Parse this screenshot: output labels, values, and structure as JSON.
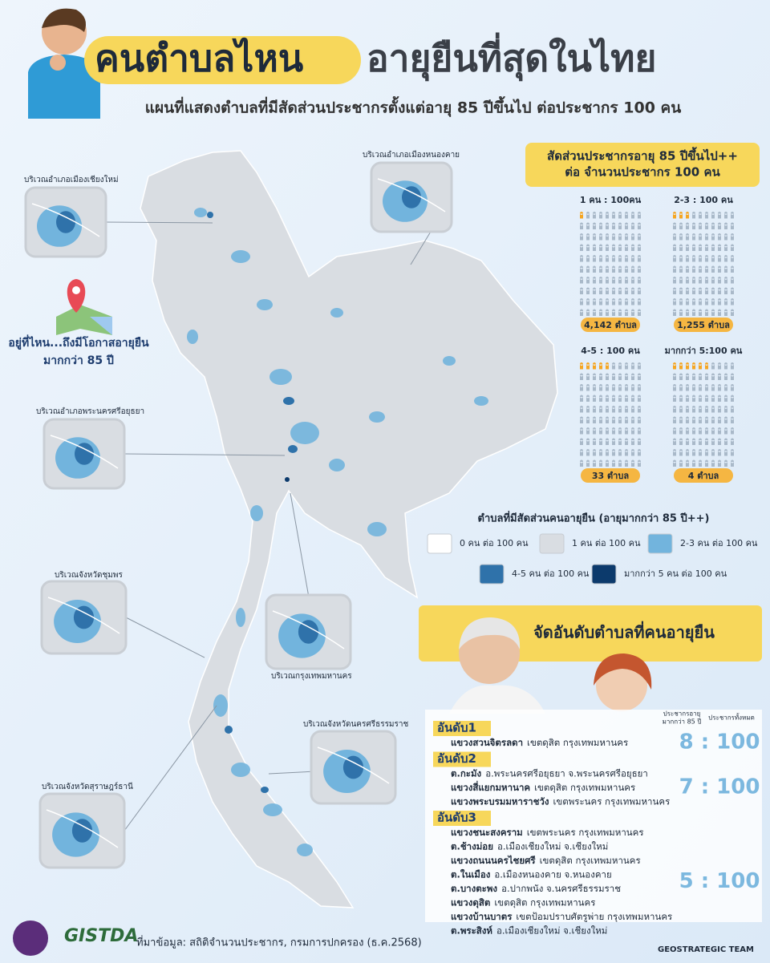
{
  "header": {
    "title_highlight": "คนตำบลไหน",
    "title_rest": "อายุยืนที่สุดในไทย",
    "subtitle": "แผนที่แสดงตำบลที่มีสัดส่วนประชากรตั้งแต่อายุ 85 ปีขึ้นไป ต่อประชากร 100 คน"
  },
  "callout": {
    "line1": "อยู่ที่ไหน...ถึงมีโอกาสอายุยืน",
    "line2": "มากกว่า 85 ปี"
  },
  "insets": [
    {
      "label": "บริเวณอำเภอเมืองเชียงใหม่"
    },
    {
      "label": "บริเวณอำเภอเมืองหนองคาย"
    },
    {
      "label": "บริเวณอำเภอพระนครศรีอยุธยา"
    },
    {
      "label": "บริเวณจังหวัดชุมพร"
    },
    {
      "label": "บริเวณกรุงเทพมหานคร"
    },
    {
      "label": "บริเวณจังหวัดนครศรีธรรมราช"
    },
    {
      "label": "บริเวณจังหวัดสุราษฎร์ธานี"
    }
  ],
  "pictogram": {
    "title_line1": "สัดส่วนประชากรอายุ 85 ปีขึ้นไป++",
    "title_line2": "ต่อ จำนวนประชากร 100 คน",
    "groups": [
      {
        "label": "1 คน : 100คน",
        "count": "4,142 ตำบล",
        "highlighted": 1
      },
      {
        "label": "2-3 : 100 คน",
        "count": "1,255 ตำบล",
        "highlighted": 3
      },
      {
        "label": "4-5 : 100 คน",
        "count": "33 ตำบล",
        "highlighted": 5
      },
      {
        "label": "มากกว่า 5:100 คน",
        "count": "4 ตำบล",
        "highlighted": 6
      }
    ]
  },
  "legend": {
    "title": "ตำบลที่มีสัดส่วนคนอายุยืน (อายุมากกว่า 85 ปี++)",
    "items": [
      {
        "label": "0 คน ต่อ 100 คน",
        "color": "#ffffff"
      },
      {
        "label": "1 คน ต่อ 100 คน",
        "color": "#d9dde2"
      },
      {
        "label": "2-3 คน ต่อ 100 คน",
        "color": "#72b4dd"
      },
      {
        "label": "4-5 คน ต่อ 100 คน",
        "color": "#2f72aa"
      },
      {
        "label": "มากกว่า 5 คน ต่อ 100 คน",
        "color": "#0c3a6c"
      }
    ]
  },
  "ranking": {
    "title": "จัดอันดับตำบลที่คนอายุยืน",
    "col_elderly_line1": "ประชากรอายุ",
    "col_elderly_line2": "มากกว่า 85 ปี",
    "col_total": "ประชากรทั้งหมด",
    "ranks": [
      {
        "rank": "อันดับ1",
        "ratio": "8 : 100",
        "entries": [
          {
            "place": "แขวงสวนจิตรลดา",
            "area": "เขตดุสิต กรุงเทพมหานคร"
          }
        ]
      },
      {
        "rank": "อันดับ2",
        "ratio": "7 : 100",
        "entries": [
          {
            "place": "ต.กะมัง",
            "area": "อ.พระนครศรีอยุธยา จ.พระนครศรีอยุธยา"
          },
          {
            "place": "แขวงสี่แยกมหานาค",
            "area": "เขตดุสิต กรุงเทพมหานคร"
          },
          {
            "place": "แขวงพระบรมมหาราชวัง",
            "area": "เขตพระนคร กรุงเทพมหานคร"
          }
        ]
      },
      {
        "rank": "อันดับ3",
        "ratio": "5 : 100",
        "entries": [
          {
            "place": "แขวงชนะสงคราม",
            "area": "เขตพระนคร กรุงเทพมหานคร"
          },
          {
            "place": "ต.ช้างม่อย",
            "area": "อ.เมืองเชียงใหม่ จ.เชียงใหม่"
          },
          {
            "place": "แขวงถนนนครไชยศรี",
            "area": "เขตดุสิต กรุงเทพมหานคร"
          },
          {
            "place": "ต.ในเมือง",
            "area": "อ.เมืองหนองคาย จ.หนองคาย"
          },
          {
            "place": "ต.บางตะพง",
            "area": "อ.ปากพนัง จ.นครศรีธรรมราช"
          },
          {
            "place": "แขวงดุสิต",
            "area": "เขตดุสิต กรุงเทพมหานคร"
          },
          {
            "place": "แขวงบ้านบาตร",
            "area": "เขตป้อมปราบศัตรูพ่าย กรุงเทพมหานคร"
          },
          {
            "place": "ต.พระสิงห์",
            "area": "อ.เมืองเชียงใหม่ จ.เชียงใหม่"
          }
        ]
      }
    ]
  },
  "footer": {
    "logo": "GISTDA",
    "source": "ที่มาข้อมูล: สถิติจำนวนประชากร, กรมการปกครอง (ธ.ค.2568)",
    "team": "GEOSTRATEGIC TEAM"
  }
}
